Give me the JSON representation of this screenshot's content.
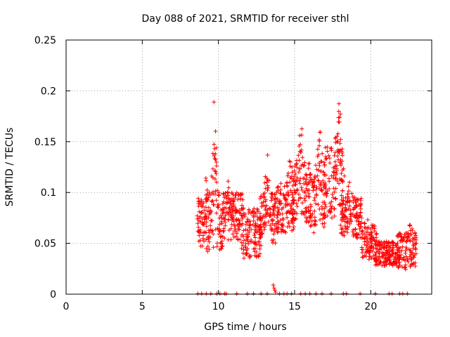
{
  "chart_data": {
    "type": "scatter",
    "title": "Day 088 of 2021, SRMTID for receiver sthl",
    "xlabel": "GPS time / hours",
    "ylabel": "SRMTID / TECUs",
    "xlim": [
      0,
      24
    ],
    "ylim": [
      0,
      0.25
    ],
    "xticks": [
      0,
      5,
      10,
      15,
      20
    ],
    "yticks": [
      0,
      0.05,
      0.1,
      0.15,
      0.2,
      0.25
    ],
    "ytick_labels": [
      "0",
      "0.05",
      "0.1",
      "0.15",
      "0.2",
      "0.25"
    ],
    "grid": true,
    "marker": "+",
    "series_color": "#ff0000",
    "segments": [
      {
        "t0": 8.6,
        "t1": 9.3,
        "base": 0.07,
        "amp": 0.025,
        "peak_t": 9.2,
        "peak": 0.03
      },
      {
        "t0": 9.2,
        "t1": 10.4,
        "base": 0.07,
        "amp": 0.03,
        "peak_t": 9.75,
        "peak": 0.1
      },
      {
        "t0": 10.3,
        "t1": 11.6,
        "base": 0.075,
        "amp": 0.025,
        "peak_t": 10.6,
        "peak": 0.03
      },
      {
        "t0": 11.5,
        "t1": 12.8,
        "base": 0.06,
        "amp": 0.025,
        "peak_t": 12.1,
        "peak": 0.0
      },
      {
        "t0": 12.7,
        "t1": 13.8,
        "base": 0.075,
        "amp": 0.025,
        "peak_t": 13.2,
        "peak": 0.04
      },
      {
        "t0": 13.8,
        "t1": 15.0,
        "base": 0.085,
        "amp": 0.025,
        "peak_t": 14.7,
        "peak": 0.03
      },
      {
        "t0": 14.8,
        "t1": 16.0,
        "base": 0.1,
        "amp": 0.03,
        "peak_t": 15.4,
        "peak": 0.05
      },
      {
        "t0": 15.9,
        "t1": 17.0,
        "base": 0.09,
        "amp": 0.03,
        "peak_t": 16.6,
        "peak": 0.08
      },
      {
        "t0": 16.9,
        "t1": 18.3,
        "base": 0.11,
        "amp": 0.035,
        "peak_t": 17.9,
        "peak": 0.06
      },
      {
        "t0": 18.0,
        "t1": 19.4,
        "base": 0.075,
        "amp": 0.02,
        "peak_t": 18.6,
        "peak": 0.02
      },
      {
        "t0": 19.3,
        "t1": 20.4,
        "base": 0.05,
        "amp": 0.018,
        "peak_t": 19.8,
        "peak": 0.01
      },
      {
        "t0": 20.3,
        "t1": 21.8,
        "base": 0.04,
        "amp": 0.012,
        "peak_t": 21.0,
        "peak": 0.0
      },
      {
        "t0": 21.7,
        "t1": 23.0,
        "base": 0.042,
        "amp": 0.018,
        "peak_t": 22.6,
        "peak": 0.02
      }
    ],
    "zero_points": [
      8.65,
      8.9,
      9.2,
      9.5,
      9.9,
      10.1,
      10.4,
      10.5,
      11.2,
      11.9,
      12.3,
      12.8,
      13.2,
      14.0,
      14.3,
      14.5,
      14.8,
      15.4,
      15.7,
      16.0,
      16.4,
      16.8,
      17.4,
      18.2,
      18.4,
      19.3,
      20.3,
      21.2,
      21.4,
      21.9,
      22.1,
      22.4
    ],
    "spike_points": [
      {
        "x": 13.6,
        "y": 0.009
      },
      {
        "x": 13.65,
        "y": 0.006
      },
      {
        "x": 13.7,
        "y": 0.004
      },
      {
        "x": 13.75,
        "y": 0.002
      }
    ]
  }
}
